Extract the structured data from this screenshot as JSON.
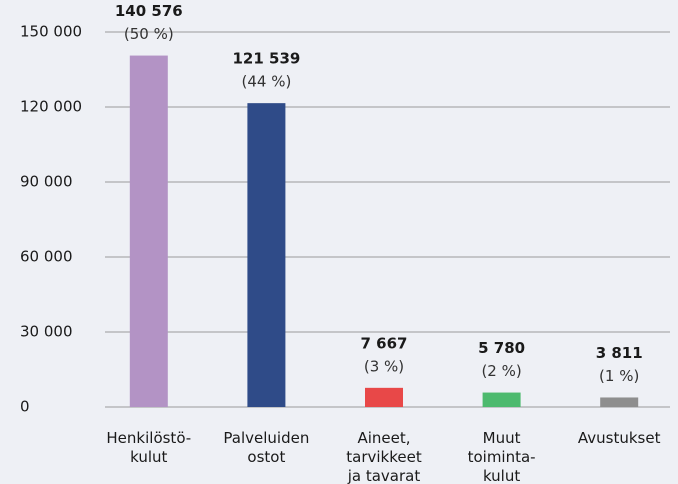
{
  "chart_data": {
    "type": "bar",
    "categories": [
      [
        "Henkilöstö-",
        "kulut"
      ],
      [
        "Palveluiden",
        "ostot"
      ],
      [
        "Aineet,",
        "tarvikkeet",
        "ja tavarat"
      ],
      [
        "Muut",
        "toiminta-",
        "kulut"
      ],
      [
        "Avustukset"
      ]
    ],
    "values": [
      140576,
      121539,
      7667,
      5780,
      3811
    ],
    "value_labels": [
      "140 576",
      "121 539",
      "7 667",
      "5 780",
      "3 811"
    ],
    "percent_labels": [
      "(50 %)",
      "(44 %)",
      "(3 %)",
      "(2 %)",
      "(1 %)"
    ],
    "colors": [
      "#b393c5",
      "#2f4b88",
      "#e84848",
      "#4dba6e",
      "#8e8e8e"
    ],
    "ylim": [
      0,
      150000
    ],
    "yticks": [
      0,
      {
        "value": 30000,
        "label": "30 000"
      },
      {
        "value": 60000,
        "label": "60 000"
      },
      {
        "value": 90000,
        "label": "90 000"
      },
      {
        "value": 120000,
        "label": "120 000"
      },
      {
        "value": 150000,
        "label": "150 000"
      }
    ],
    "grid": true
  }
}
